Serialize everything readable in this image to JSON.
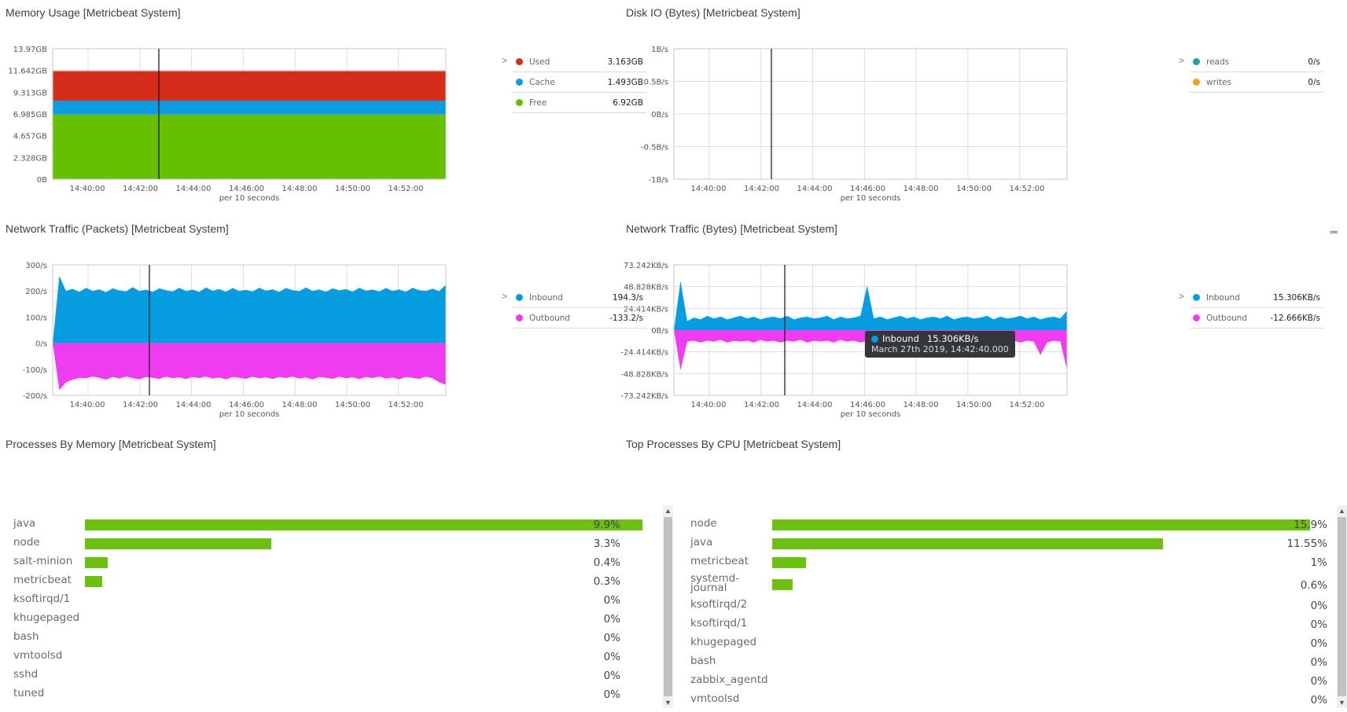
{
  "panels": {
    "memory": {
      "title": "Memory Usage [Metricbeat System]"
    },
    "disk": {
      "title": "Disk IO (Bytes) [Metricbeat System]"
    },
    "net_packets": {
      "title": "Network Traffic (Packets) [Metricbeat System]"
    },
    "net_bytes": {
      "title": "Network Traffic (Bytes) [Metricbeat System]"
    },
    "proc_mem": {
      "title": "Processes By Memory [Metricbeat System]"
    },
    "proc_cpu": {
      "title": "Top Processes By CPU [Metricbeat System]"
    }
  },
  "colors": {
    "used": "#d42e1b",
    "cache": "#0e9be0",
    "free": "#66bf00",
    "reads": "#1fa3a8",
    "writes": "#f39c1d",
    "inbound": "#059ddf",
    "outbound": "#f03cf0",
    "bar": "#6dc012"
  },
  "tooltip": {
    "series": "Inbound",
    "value": "15.306KB/s",
    "date": "March 27th 2019, 14:42:40.000"
  },
  "chart_data": [
    {
      "id": "memory",
      "type": "area",
      "title": "Memory Usage [Metricbeat System]",
      "xlabel": "per 10 seconds",
      "x_ticks": [
        "14:40:00",
        "14:42:00",
        "14:44:00",
        "14:46:00",
        "14:48:00",
        "14:50:00",
        "14:52:00"
      ],
      "y_ticks": [
        "0B",
        "2.328GB",
        "4.657GB",
        "6.985GB",
        "9.313GB",
        "11.642GB",
        "13.97GB"
      ],
      "ylim": [
        0,
        13.97
      ],
      "stacked": true,
      "series": [
        {
          "name": "Free",
          "color": "#66bf00",
          "values": [
            6.92,
            6.92
          ]
        },
        {
          "name": "Cache",
          "color": "#0e9be0",
          "values": [
            1.493,
            1.493
          ]
        },
        {
          "name": "Used",
          "color": "#d42e1b",
          "values": [
            3.163,
            3.163
          ]
        }
      ],
      "legend": [
        {
          "name": "Used",
          "value": "3.163GB",
          "color": "#d42e1b"
        },
        {
          "name": "Cache",
          "value": "1.493GB",
          "color": "#0e9be0"
        },
        {
          "name": "Free",
          "value": "6.92GB",
          "color": "#66bf00"
        }
      ]
    },
    {
      "id": "disk",
      "type": "line",
      "title": "Disk IO (Bytes) [Metricbeat System]",
      "xlabel": "per 10 seconds",
      "x_ticks": [
        "14:40:00",
        "14:42:00",
        "14:44:00",
        "14:46:00",
        "14:48:00",
        "14:50:00",
        "14:52:00"
      ],
      "y_ticks": [
        "-1B/s",
        "-0.5B/s",
        "0B/s",
        "0.5B/s",
        "1B/s"
      ],
      "ylim": [
        -1,
        1
      ],
      "series": [],
      "legend": [
        {
          "name": "reads",
          "value": "0/s",
          "color": "#1fa3a8"
        },
        {
          "name": "writes",
          "value": "0/s",
          "color": "#f39c1d"
        }
      ]
    },
    {
      "id": "net_packets",
      "type": "area",
      "title": "Network Traffic (Packets) [Metricbeat System]",
      "xlabel": "per 10 seconds",
      "x_ticks": [
        "14:40:00",
        "14:42:00",
        "14:44:00",
        "14:46:00",
        "14:48:00",
        "14:50:00",
        "14:52:00"
      ],
      "y_ticks": [
        "-200/s",
        "-100/s",
        "0/s",
        "100/s",
        "200/s",
        "300/s"
      ],
      "ylim": [
        -200,
        300
      ],
      "series": [
        {
          "name": "Inbound",
          "color": "#059ddf",
          "values": [
            0,
            258,
            200,
            208,
            196,
            212,
            200,
            206,
            195,
            210,
            202,
            198,
            214,
            200,
            205,
            196,
            210,
            203,
            198,
            212,
            200,
            205,
            196,
            213,
            201,
            207,
            197,
            211,
            200,
            204,
            198,
            212,
            201,
            206,
            196,
            211,
            203,
            199,
            213,
            200,
            206,
            197,
            210,
            202,
            207,
            197,
            212,
            201,
            205,
            198,
            211,
            200,
            206,
            197,
            212,
            203,
            200,
            209,
            199,
            224
          ]
        },
        {
          "name": "Outbound",
          "color": "#f03cf0",
          "values": [
            0,
            -180,
            -150,
            -140,
            -133,
            -135,
            -128,
            -133,
            -140,
            -130,
            -136,
            -128,
            -134,
            -139,
            -130,
            -133,
            -137,
            -129,
            -135,
            -131,
            -138,
            -130,
            -134,
            -128,
            -136,
            -132,
            -139,
            -130,
            -133,
            -137,
            -129,
            -135,
            -131,
            -138,
            -130,
            -134,
            -128,
            -136,
            -132,
            -139,
            -130,
            -133,
            -137,
            -129,
            -135,
            -131,
            -138,
            -130,
            -134,
            -128,
            -136,
            -132,
            -139,
            -130,
            -133,
            -137,
            -129,
            -135,
            -150,
            -160
          ]
        }
      ],
      "legend": [
        {
          "name": "Inbound",
          "value": "194.3/s",
          "color": "#059ddf"
        },
        {
          "name": "Outbound",
          "value": "-133.2/s",
          "color": "#f03cf0"
        }
      ]
    },
    {
      "id": "net_bytes",
      "type": "area",
      "title": "Network Traffic (Bytes) [Metricbeat System]",
      "xlabel": "per 10 seconds",
      "x_ticks": [
        "14:40:00",
        "14:42:00",
        "14:44:00",
        "14:46:00",
        "14:48:00",
        "14:50:00",
        "14:52:00"
      ],
      "y_ticks": [
        "-73.242KB/s",
        "-48.828KB/s",
        "-24.414KB/s",
        "0B/s",
        "24.414KB/s",
        "48.828KB/s",
        "73.242KB/s"
      ],
      "ylim": [
        -73.242,
        73.242
      ],
      "series": [
        {
          "name": "Inbound",
          "color": "#059ddf",
          "values": [
            0,
            55,
            10,
            14,
            12,
            16,
            13,
            15,
            12,
            14,
            16,
            13,
            15,
            12,
            14,
            15,
            13,
            16,
            12,
            14,
            15,
            13,
            14,
            16,
            12,
            15,
            13,
            14,
            16,
            50,
            13,
            15,
            12,
            14,
            16,
            13,
            15,
            12,
            14,
            15,
            13,
            16,
            12,
            14,
            15,
            13,
            14,
            16,
            12,
            15,
            13,
            14,
            16,
            13,
            15,
            12,
            14,
            15,
            13,
            22
          ]
        },
        {
          "name": "Outbound",
          "color": "#f03cf0",
          "values": [
            0,
            -45,
            -13,
            -12,
            -14,
            -12,
            -13,
            -11,
            -14,
            -12,
            -13,
            -12,
            -14,
            -11,
            -13,
            -12,
            -14,
            -12,
            -13,
            -11,
            -14,
            -12,
            -13,
            -12,
            -14,
            -11,
            -13,
            -12,
            -14,
            -12,
            -13,
            -11,
            -14,
            -12,
            -13,
            -12,
            -14,
            -11,
            -13,
            -12,
            -14,
            -12,
            -13,
            -11,
            -14,
            -12,
            -13,
            -12,
            -14,
            -11,
            -13,
            -12,
            -14,
            -12,
            -13,
            -28,
            -14,
            -12,
            -13,
            -45
          ]
        }
      ],
      "legend": [
        {
          "name": "Inbound",
          "value": "15.306KB/s",
          "color": "#059ddf"
        },
        {
          "name": "Outbound",
          "value": "-12.666KB/s",
          "color": "#f03cf0"
        }
      ]
    },
    {
      "id": "proc_mem",
      "type": "bar",
      "title": "Processes By Memory [Metricbeat System]",
      "categories": [
        "java",
        "node",
        "salt-minion",
        "metricbeat",
        "ksoftirqd/1",
        "khugepaged",
        "bash",
        "vmtoolsd",
        "sshd",
        "tuned"
      ],
      "values": [
        9.9,
        3.3,
        0.4,
        0.3,
        0,
        0,
        0,
        0,
        0,
        0
      ],
      "labels": [
        "9.9%",
        "3.3%",
        "0.4%",
        "0.3%",
        "0%",
        "0%",
        "0%",
        "0%",
        "0%",
        "0%"
      ]
    },
    {
      "id": "proc_cpu",
      "type": "bar",
      "title": "Top Processes By CPU [Metricbeat System]",
      "categories": [
        "node",
        "java",
        "metricbeat",
        "systemd-\njournal",
        "ksoftirqd/2",
        "ksoftirqd/1",
        "khugepaged",
        "bash",
        "zabbix_agentd",
        "vmtoolsd"
      ],
      "values": [
        15.9,
        11.55,
        1,
        0.6,
        0,
        0,
        0,
        0,
        0,
        0
      ],
      "labels": [
        "15.9%",
        "11.55%",
        "1%",
        "0.6%",
        "0%",
        "0%",
        "0%",
        "0%",
        "0%",
        "0%"
      ]
    }
  ]
}
